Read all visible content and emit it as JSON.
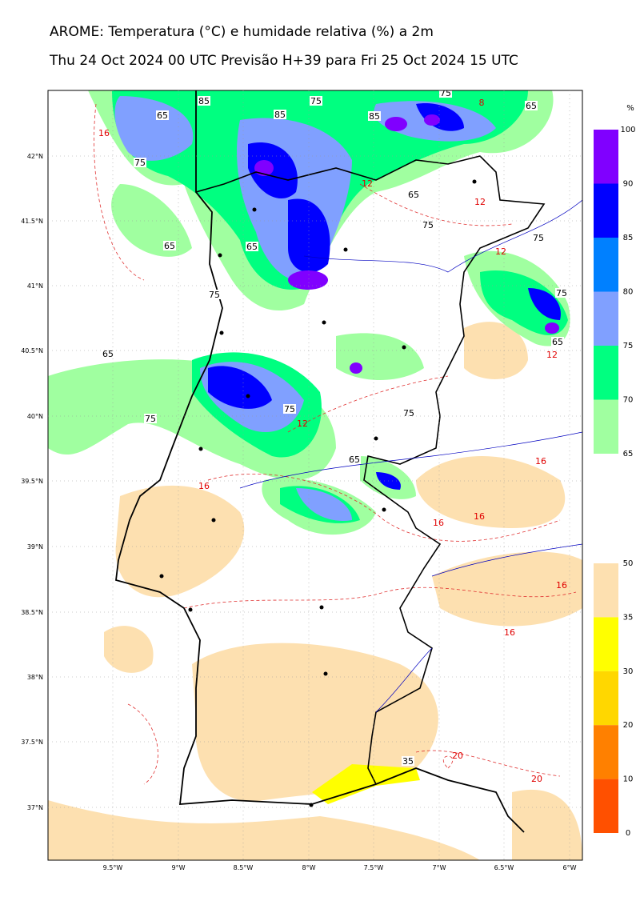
{
  "header": {
    "title": "AROME: Temperatura (°C) e humidade relativa (%) a 2m",
    "subtitle": "Thu 24 Oct 2024 00 UTC Previsão H+39 para Fri 25 Oct 2024 15 UTC"
  },
  "map": {
    "lat_labels": [
      "42°N",
      "41.5°N",
      "41°N",
      "40.5°N",
      "40°N",
      "39.5°N",
      "39°N",
      "38.5°N",
      "38°N",
      "37.5°N",
      "37°N"
    ],
    "lon_labels": [
      "9.5°W",
      "9°W",
      "8.5°W",
      "8°W",
      "7.5°W",
      "7°W",
      "6.5°W",
      "6°W"
    ],
    "contour_labels": [
      {
        "text": "65",
        "color": "#000"
      },
      {
        "text": "75",
        "color": "#000"
      },
      {
        "text": "85",
        "color": "#000"
      },
      {
        "text": "75",
        "color": "#000"
      },
      {
        "text": "85",
        "color": "#000"
      },
      {
        "text": "65",
        "color": "#000"
      },
      {
        "text": "75",
        "color": "#000"
      },
      {
        "text": "85",
        "color": "#000"
      },
      {
        "text": "65",
        "color": "#000"
      },
      {
        "text": "75",
        "color": "#000"
      },
      {
        "text": "75",
        "color": "#000"
      },
      {
        "text": "65",
        "color": "#000"
      },
      {
        "text": "65",
        "color": "#000"
      },
      {
        "text": "75",
        "color": "#000"
      },
      {
        "text": "65",
        "color": "#000"
      },
      {
        "text": "75",
        "color": "#000"
      },
      {
        "text": "65",
        "color": "#000"
      },
      {
        "text": "75",
        "color": "#000"
      },
      {
        "text": "75",
        "color": "#000"
      },
      {
        "text": "75",
        "color": "#000"
      },
      {
        "text": "65",
        "color": "#000"
      },
      {
        "text": "35",
        "color": "#000"
      },
      {
        "text": "16",
        "color": "#e00000"
      },
      {
        "text": "12",
        "color": "#e00000"
      },
      {
        "text": "12",
        "color": "#e00000"
      },
      {
        "text": "12",
        "color": "#e00000"
      },
      {
        "text": "12",
        "color": "#e00000"
      },
      {
        "text": "12",
        "color": "#e00000"
      },
      {
        "text": "16",
        "color": "#e00000"
      },
      {
        "text": "16",
        "color": "#e00000"
      },
      {
        "text": "16",
        "color": "#e00000"
      },
      {
        "text": "16",
        "color": "#e00000"
      },
      {
        "text": "16",
        "color": "#e00000"
      },
      {
        "text": "16",
        "color": "#e00000"
      },
      {
        "text": "20",
        "color": "#e00000"
      },
      {
        "text": "20",
        "color": "#e00000"
      },
      {
        "text": "8",
        "color": "#e00000"
      }
    ]
  },
  "humidity_scale": {
    "unit": "%",
    "labels": [
      "100",
      "90",
      "85",
      "80",
      "75",
      "70",
      "65"
    ],
    "colors": [
      "#8000ff",
      "#0000ff",
      "#0080ff",
      "#80a0ff",
      "#00ff80",
      "#a0ffa0"
    ]
  },
  "temperature_scale": {
    "labels": [
      "50",
      "35",
      "30",
      "20",
      "10",
      "0"
    ],
    "colors": [
      "#fde0b0",
      "#ffff00",
      "#ffd700",
      "#ff8000",
      "#ff5000"
    ]
  }
}
